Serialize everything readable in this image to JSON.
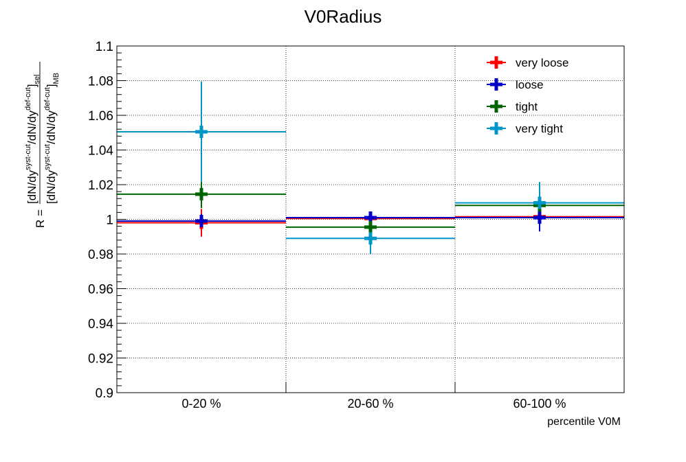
{
  "chart_data": {
    "type": "scatter",
    "title": "V0Radius",
    "xlabel": "percentile V0M",
    "ylabel": {
      "prefix": "R =",
      "numerator": {
        "a": "[dN/dy",
        "a_sup": "syst-cut",
        "b": "/dN/dy",
        "b_sup": "def-cut",
        "c": "]",
        "c_sub": "sel"
      },
      "denominator": {
        "a": "[dN/dy",
        "a_sup": "syst-cut",
        "b": "/dN/dy",
        "b_sup": "def-cut",
        "c": "]",
        "c_sub": "MB"
      }
    },
    "categories": [
      "0-20 %",
      "20-60 %",
      "60-100 %"
    ],
    "ylim": [
      0.9,
      1.1
    ],
    "yticks": [
      "0.9",
      "0.92",
      "0.94",
      "0.96",
      "0.98",
      "1",
      "1.02",
      "1.04",
      "1.06",
      "1.08",
      "1.1"
    ],
    "grid": true,
    "legend_position": "top-right",
    "series": [
      {
        "name": "very loose",
        "color": "#ff0000",
        "values": [
          0.998,
          1.0005,
          1.0015
        ],
        "errors": [
          0.008,
          0.001,
          0.001
        ]
      },
      {
        "name": "loose",
        "color": "#0000c8",
        "values": [
          0.999,
          1.001,
          1.001
        ],
        "errors": [
          0.004,
          0.002,
          0.008
        ]
      },
      {
        "name": "tight",
        "color": "#006400",
        "values": [
          1.0145,
          0.9955,
          1.008
        ],
        "errors": [
          0.008,
          0.004,
          0.007
        ]
      },
      {
        "name": "very tight",
        "color": "#0095c8",
        "values": [
          1.0505,
          0.989,
          1.0095
        ],
        "errors": [
          0.029,
          0.009,
          0.012
        ]
      }
    ]
  }
}
